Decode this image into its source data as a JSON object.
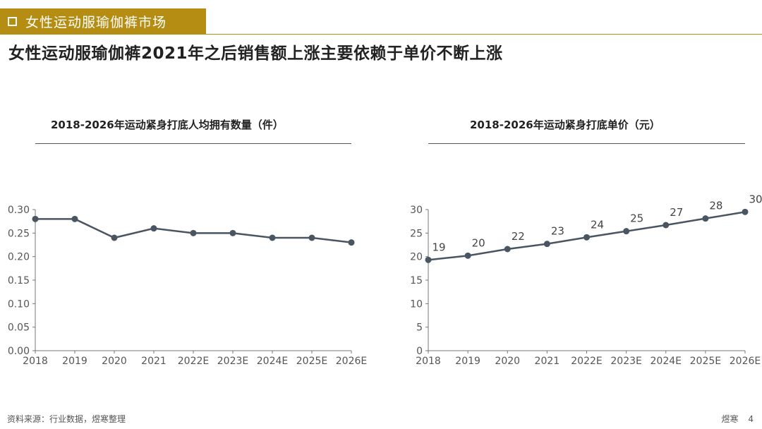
{
  "header": {
    "tag": "女性运动服瑜伽裤市场",
    "headline": "女性运动服瑜伽裤2021年之后销售额上涨主要依赖于单价不断上涨"
  },
  "colors": {
    "accent": "#b48d12",
    "series": "#4a5562",
    "axis": "#777777"
  },
  "icons": {
    "tag_marker": "square-outline-icon"
  },
  "chart_data": [
    {
      "type": "line",
      "title": "2018-2026年运动紧身打底人均拥有数量（件）",
      "categories": [
        "2018",
        "2019",
        "2020",
        "2021",
        "2022E",
        "2023E",
        "2024E",
        "2025E",
        "2026E"
      ],
      "series": [
        {
          "values": [
            0.28,
            0.28,
            0.24,
            0.26,
            0.25,
            0.25,
            0.24,
            0.24,
            0.23
          ]
        }
      ],
      "ylim": [
        0,
        0.3
      ],
      "yticks": [
        "0.00",
        "0.05",
        "0.10",
        "0.15",
        "0.20",
        "0.25",
        "0.30"
      ],
      "data_labels": false,
      "grid": false
    },
    {
      "type": "line",
      "title": "2018-2026年运动紧身打底单价（元）",
      "categories": [
        "2018",
        "2019",
        "2020",
        "2021",
        "2022E",
        "2023E",
        "2024E",
        "2025E",
        "2026E"
      ],
      "series": [
        {
          "values": [
            19.3,
            20.2,
            21.6,
            22.7,
            24.1,
            25.4,
            26.7,
            28.1,
            29.5
          ]
        }
      ],
      "labels": [
        "19",
        "20",
        "22",
        "23",
        "24",
        "25",
        "27",
        "28",
        "30"
      ],
      "ylim": [
        0,
        30
      ],
      "yticks": [
        "0",
        "5",
        "10",
        "15",
        "20",
        "25",
        "30"
      ],
      "data_labels": true,
      "grid": false
    }
  ],
  "footer": {
    "source": "资料来源：行业数据，煜寒整理",
    "brand": "煜寒",
    "page": "4"
  }
}
